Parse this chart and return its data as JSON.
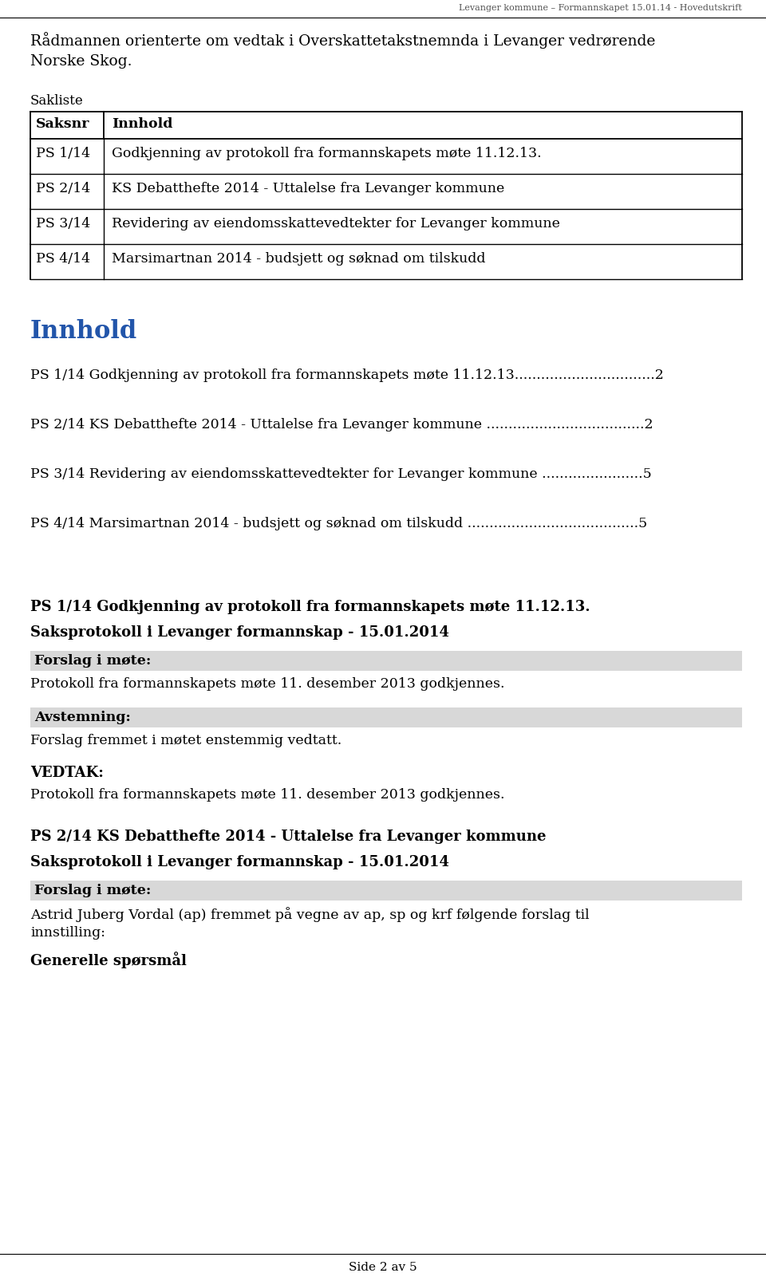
{
  "header_text": "Levanger kommune – Formannskapet 15.01.14 - Hovedutskrift",
  "intro_line1": "Rådmannen orienterte om vedtak i Overskattetakstnemnda i Levanger vedrørende",
  "intro_line2": "Norske Skog.",
  "sakliste_label": "Sakliste",
  "table_headers": [
    "Saksnr",
    "Innhold"
  ],
  "table_rows": [
    [
      "PS 1/14",
      "Godkjenning av protokoll fra formannskapets møte 11.12.13."
    ],
    [
      "PS 2/14",
      "KS Debatthefte 2014 - Uttalelse fra Levanger kommune"
    ],
    [
      "PS 3/14",
      "Revidering av eiendomsskattevedtekter for Levanger kommune"
    ],
    [
      "PS 4/14",
      "Marsimartnan 2014 - budsjett og søknad om tilskudd"
    ]
  ],
  "innhold_title": "Innhold",
  "toc_entries": [
    "PS 1/14 Godkjenning av protokoll fra formannskapets møte 11.12.13................................2",
    "PS 2/14 KS Debatthefte 2014 - Uttalelse fra Levanger kommune ....................................2",
    "PS 3/14 Revidering av eiendomsskattevedtekter for Levanger kommune .......................5",
    "PS 4/14 Marsimartnan 2014 - budsjett og søknad om tilskudd .......................................5"
  ],
  "section1_title": "PS 1/14 Godkjenning av protokoll fra formannskapets møte 11.12.13.",
  "section1_subtitle": "Saksprotokoll i Levanger formannskap - 15.01.2014",
  "section1_forslag_label": "Forslag i møte:",
  "section1_forslag_text": "Protokoll fra formannskapets møte 11. desember 2013 godkjennes.",
  "section1_avstemning_label": "Avstemning:",
  "section1_avstemning_text": "Forslag fremmet i møtet enstemmig vedtatt.",
  "section1_vedtak_label": "VEDTAK:",
  "section1_vedtak_text": "Protokoll fra formannskapets møte 11. desember 2013 godkjennes.",
  "section2_title": "PS 2/14 KS Debatthefte 2014 - Uttalelse fra Levanger kommune",
  "section2_subtitle": "Saksprotokoll i Levanger formannskap - 15.01.2014",
  "section2_forslag_label": "Forslag i møte:",
  "section2_forslag_text_line1": "Astrid Juberg Vordal (ap) fremmet på vegne av ap, sp og krf følgende forslag til",
  "section2_forslag_text_line2": "innstilling:",
  "section2_generelle_label": "Generelle spørsmål",
  "footer_text": "Side 2 av 5",
  "bg_color": "#ffffff",
  "text_color": "#000000",
  "innhold_color": "#2255aa",
  "shaded_row_color": "#d8d8d8"
}
